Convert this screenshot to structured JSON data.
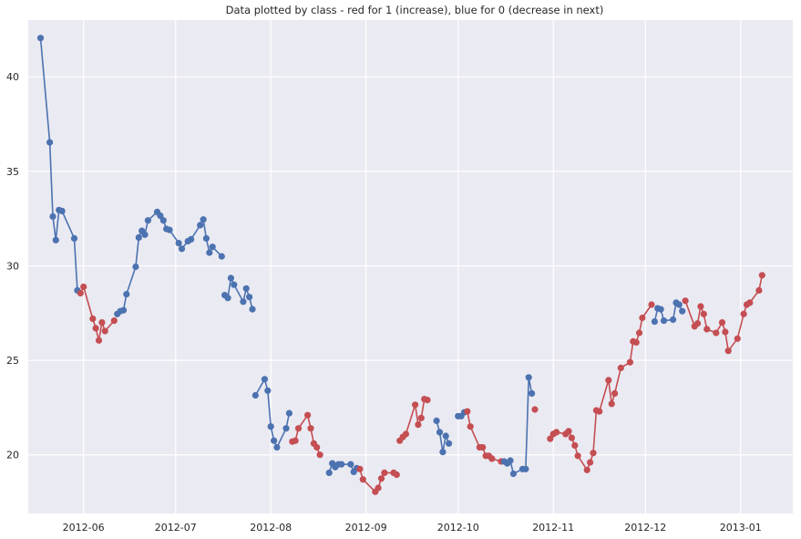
{
  "chart_data": {
    "type": "line",
    "title": "Data plotted by class - red for 1 (increase), blue for 0 (decrease in next)",
    "xlabel": "",
    "ylabel": "",
    "x_axis": "date",
    "xlim": [
      "2012-05-14",
      "2013-01-18"
    ],
    "ylim": [
      16.9,
      43.0
    ],
    "grid": true,
    "legend": "none",
    "x_ticks": [
      {
        "value": "2012-06-01",
        "label": "2012-06"
      },
      {
        "value": "2012-07-01",
        "label": "2012-07"
      },
      {
        "value": "2012-08-01",
        "label": "2012-08"
      },
      {
        "value": "2012-09-01",
        "label": "2012-09"
      },
      {
        "value": "2012-10-01",
        "label": "2012-10"
      },
      {
        "value": "2012-11-01",
        "label": "2012-11"
      },
      {
        "value": "2012-12-01",
        "label": "2012-12"
      },
      {
        "value": "2013-01-01",
        "label": "2013-01"
      }
    ],
    "y_ticks": [
      {
        "value": 20,
        "label": "20"
      },
      {
        "value": 25,
        "label": "25"
      },
      {
        "value": 30,
        "label": "30"
      },
      {
        "value": 35,
        "label": "35"
      },
      {
        "value": 40,
        "label": "40"
      }
    ],
    "colors": {
      "class_0": "#4c72b0",
      "class_1": "#c44e52",
      "plot_bg": "#eaeaf2",
      "grid": "#ffffff"
    },
    "series": [
      {
        "class": 0,
        "points": [
          [
            "2012-05-18",
            42.05
          ],
          [
            "2012-05-21",
            36.53
          ],
          [
            "2012-05-22",
            32.61
          ],
          [
            "2012-05-23",
            31.36
          ],
          [
            "2012-05-24",
            32.95
          ],
          [
            "2012-05-25",
            32.9
          ],
          [
            "2012-05-29",
            31.45
          ],
          [
            "2012-05-30",
            28.7
          ]
        ]
      },
      {
        "class": 1,
        "points": [
          [
            "2012-05-31",
            28.55
          ],
          [
            "2012-06-01",
            28.89
          ],
          [
            "2012-06-04",
            27.2
          ],
          [
            "2012-06-05",
            26.7
          ],
          [
            "2012-06-06",
            26.05
          ],
          [
            "2012-06-07",
            27.0
          ],
          [
            "2012-06-08",
            26.55
          ],
          [
            "2012-06-11",
            27.1
          ]
        ]
      },
      {
        "class": 0,
        "points": [
          [
            "2012-06-12",
            27.45
          ],
          [
            "2012-06-13",
            27.6
          ],
          [
            "2012-06-14",
            27.65
          ],
          [
            "2012-06-15",
            28.5
          ],
          [
            "2012-06-18",
            29.95
          ],
          [
            "2012-06-19",
            31.5
          ],
          [
            "2012-06-20",
            31.85
          ],
          [
            "2012-06-21",
            31.65
          ],
          [
            "2012-06-22",
            32.4
          ],
          [
            "2012-06-25",
            32.85
          ],
          [
            "2012-06-26",
            32.65
          ],
          [
            "2012-06-27",
            32.4
          ],
          [
            "2012-06-28",
            31.95
          ],
          [
            "2012-06-29",
            31.9
          ],
          [
            "2012-07-02",
            31.2
          ],
          [
            "2012-07-03",
            30.9
          ],
          [
            "2012-07-05",
            31.3
          ],
          [
            "2012-07-06",
            31.4
          ],
          [
            "2012-07-09",
            32.15
          ],
          [
            "2012-07-10",
            32.45
          ],
          [
            "2012-07-11",
            31.45
          ],
          [
            "2012-07-12",
            30.7
          ],
          [
            "2012-07-13",
            31.0
          ],
          [
            "2012-07-16",
            30.5
          ]
        ]
      },
      {
        "class": 0,
        "points": [
          [
            "2012-07-17",
            28.45
          ],
          [
            "2012-07-18",
            28.3
          ],
          [
            "2012-07-19",
            29.35
          ],
          [
            "2012-07-20",
            29.0
          ],
          [
            "2012-07-23",
            28.1
          ],
          [
            "2012-07-24",
            28.8
          ],
          [
            "2012-07-25",
            28.35
          ],
          [
            "2012-07-26",
            27.7
          ]
        ]
      },
      {
        "class": 0,
        "points": [
          [
            "2012-07-27",
            23.15
          ],
          [
            "2012-07-30",
            24.0
          ],
          [
            "2012-07-31",
            23.4
          ],
          [
            "2012-08-01",
            21.5
          ],
          [
            "2012-08-02",
            20.75
          ],
          [
            "2012-08-03",
            20.4
          ],
          [
            "2012-08-06",
            21.4
          ],
          [
            "2012-08-07",
            22.2
          ]
        ]
      },
      {
        "class": 1,
        "points": [
          [
            "2012-08-08",
            20.7
          ],
          [
            "2012-08-09",
            20.75
          ],
          [
            "2012-08-10",
            21.4
          ],
          [
            "2012-08-13",
            22.1
          ],
          [
            "2012-08-14",
            21.4
          ],
          [
            "2012-08-15",
            20.6
          ],
          [
            "2012-08-16",
            20.4
          ],
          [
            "2012-08-17",
            20.0
          ]
        ]
      },
      {
        "class": 0,
        "points": [
          [
            "2012-08-20",
            19.05
          ],
          [
            "2012-08-21",
            19.55
          ],
          [
            "2012-08-22",
            19.35
          ],
          [
            "2012-08-23",
            19.5
          ],
          [
            "2012-08-24",
            19.5
          ],
          [
            "2012-08-27",
            19.5
          ],
          [
            "2012-08-28",
            19.1
          ],
          [
            "2012-08-29",
            19.3
          ]
        ]
      },
      {
        "class": 1,
        "points": [
          [
            "2012-08-30",
            19.25
          ],
          [
            "2012-08-31",
            18.7
          ],
          [
            "2012-09-04",
            18.05
          ],
          [
            "2012-09-05",
            18.25
          ],
          [
            "2012-09-06",
            18.75
          ],
          [
            "2012-09-07",
            19.05
          ],
          [
            "2012-09-10",
            19.05
          ],
          [
            "2012-09-11",
            18.95
          ]
        ]
      },
      {
        "class": 1,
        "points": [
          [
            "2012-09-12",
            20.75
          ],
          [
            "2012-09-13",
            20.95
          ],
          [
            "2012-09-14",
            21.1
          ],
          [
            "2012-09-17",
            22.65
          ],
          [
            "2012-09-18",
            21.6
          ],
          [
            "2012-09-19",
            21.95
          ],
          [
            "2012-09-20",
            22.95
          ],
          [
            "2012-09-21",
            22.9
          ]
        ]
      },
      {
        "class": 0,
        "points": [
          [
            "2012-09-24",
            21.8
          ],
          [
            "2012-09-25",
            21.2
          ],
          [
            "2012-09-26",
            20.15
          ],
          [
            "2012-09-27",
            21.0
          ],
          [
            "2012-09-28",
            20.6
          ]
        ]
      },
      {
        "class": 0,
        "points": [
          [
            "2012-10-01",
            22.05
          ],
          [
            "2012-10-02",
            22.05
          ],
          [
            "2012-10-03",
            22.25
          ]
        ]
      },
      {
        "class": 1,
        "points": [
          [
            "2012-10-04",
            22.3
          ],
          [
            "2012-10-05",
            21.5
          ],
          [
            "2012-10-08",
            20.4
          ],
          [
            "2012-10-09",
            20.4
          ],
          [
            "2012-10-10",
            19.95
          ],
          [
            "2012-10-11",
            19.95
          ],
          [
            "2012-10-12",
            19.8
          ],
          [
            "2012-10-15",
            19.65
          ]
        ]
      },
      {
        "class": 0,
        "points": [
          [
            "2012-10-16",
            19.65
          ],
          [
            "2012-10-17",
            19.55
          ],
          [
            "2012-10-18",
            19.7
          ],
          [
            "2012-10-19",
            19.0
          ],
          [
            "2012-10-22",
            19.25
          ],
          [
            "2012-10-23",
            19.25
          ],
          [
            "2012-10-24",
            24.1
          ],
          [
            "2012-10-25",
            23.25
          ]
        ]
      },
      {
        "class": 1,
        "points": [
          [
            "2012-10-26",
            22.4
          ]
        ]
      },
      {
        "class": 1,
        "points": [
          [
            "2012-10-31",
            20.85
          ],
          [
            "2012-11-01",
            21.1
          ],
          [
            "2012-11-02",
            21.2
          ],
          [
            "2012-11-05",
            21.1
          ],
          [
            "2012-11-06",
            21.25
          ],
          [
            "2012-11-07",
            20.9
          ],
          [
            "2012-11-08",
            20.5
          ],
          [
            "2012-11-09",
            19.95
          ],
          [
            "2012-11-12",
            19.2
          ],
          [
            "2012-11-13",
            19.6
          ],
          [
            "2012-11-14",
            20.1
          ],
          [
            "2012-11-15",
            22.35
          ],
          [
            "2012-11-16",
            22.3
          ],
          [
            "2012-11-19",
            23.95
          ],
          [
            "2012-11-20",
            22.7
          ],
          [
            "2012-11-21",
            23.25
          ],
          [
            "2012-11-23",
            24.6
          ],
          [
            "2012-11-26",
            24.9
          ],
          [
            "2012-11-27",
            26.0
          ],
          [
            "2012-11-28",
            25.95
          ],
          [
            "2012-11-29",
            26.45
          ],
          [
            "2012-11-30",
            27.25
          ],
          [
            "2012-12-03",
            27.95
          ]
        ]
      },
      {
        "class": 0,
        "points": [
          [
            "2012-12-04",
            27.05
          ],
          [
            "2012-12-05",
            27.75
          ],
          [
            "2012-12-06",
            27.7
          ],
          [
            "2012-12-07",
            27.1
          ],
          [
            "2012-12-10",
            27.15
          ],
          [
            "2012-12-11",
            28.05
          ],
          [
            "2012-12-12",
            27.95
          ],
          [
            "2012-12-13",
            27.6
          ]
        ]
      },
      {
        "class": 1,
        "points": [
          [
            "2012-12-14",
            28.15
          ],
          [
            "2012-12-17",
            26.8
          ],
          [
            "2012-12-18",
            26.95
          ],
          [
            "2012-12-19",
            27.85
          ],
          [
            "2012-12-20",
            27.45
          ],
          [
            "2012-12-21",
            26.65
          ],
          [
            "2012-12-24",
            26.45
          ],
          [
            "2012-12-26",
            27.0
          ],
          [
            "2012-12-27",
            26.5
          ],
          [
            "2012-12-28",
            25.5
          ],
          [
            "2012-12-31",
            26.15
          ],
          [
            "2013-01-02",
            27.45
          ],
          [
            "2013-01-03",
            27.95
          ],
          [
            "2013-01-04",
            28.05
          ],
          [
            "2013-01-07",
            28.7
          ],
          [
            "2013-01-08",
            29.5
          ]
        ]
      }
    ]
  }
}
